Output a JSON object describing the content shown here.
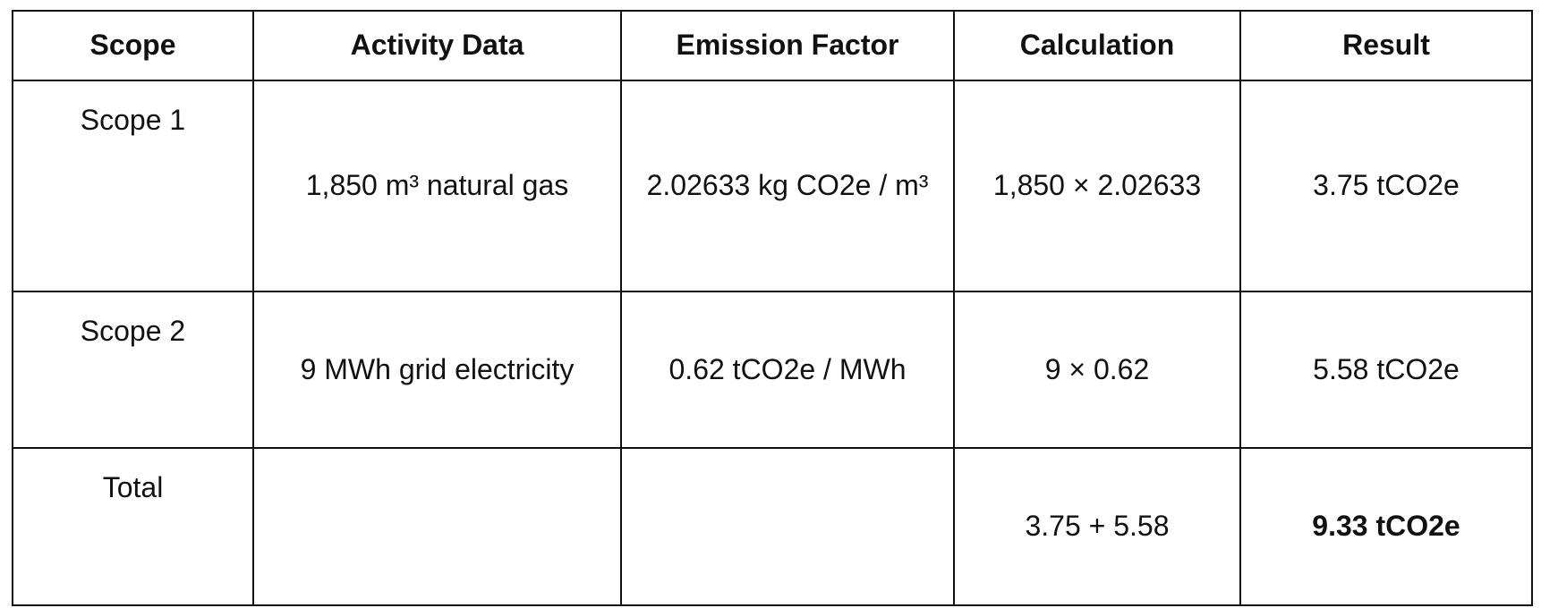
{
  "table": {
    "header": [
      "Scope",
      "Activity Data",
      "Emission Factor",
      "Calculation",
      "Result"
    ],
    "rows": [
      {
        "scope": "Scope 1",
        "activity_data": "1,850 m³ natural gas",
        "emission_factor": "2.02633 kg CO2e / m³",
        "calculation": "1,850 × 2.02633",
        "result": "3.75 tCO2e"
      },
      {
        "scope": "Scope 2",
        "activity_data": "9 MWh grid electricity",
        "emission_factor": "0.62 tCO2e / MWh",
        "calculation": "9 × 0.62",
        "result": "5.58 tCO2e"
      },
      {
        "scope": "Total",
        "calculation": "3.75 + 5.58",
        "result": "9.33 tCO2e"
      }
    ]
  }
}
